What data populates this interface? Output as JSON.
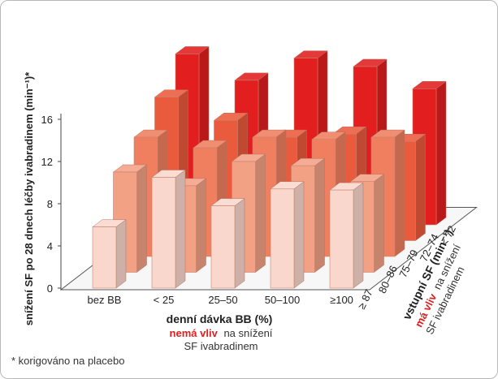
{
  "chart_data": {
    "type": "bar",
    "ylabel": "snížení SF po 28 dnech léčby ivabradinem (min⁻¹)*",
    "y_ticks": [
      "0",
      "4",
      "8",
      "12",
      "16"
    ],
    "ylim": [
      0,
      16
    ],
    "xlabel": "denní dávka BB (%)",
    "xlabel_note_red": "nemá vliv",
    "xlabel_note_rest1": "na snížení",
    "xlabel_note_rest2": "SF ivabradinem",
    "categories": [
      "bez BB",
      "< 25",
      "25–50",
      "50–100",
      "≥100"
    ],
    "zlabel": "vstupní SF (min⁻¹)",
    "zlabel_note_red": "má vliv",
    "zlabel_note_rest1": "na snížení",
    "zlabel_note_rest2": "SF ivabradinem",
    "series": [
      {
        "name": "≥ 87",
        "color": "#fad7cc",
        "values": [
          5.8,
          10.5,
          7.8,
          9.4,
          9.3
        ]
      },
      {
        "name": "80–86",
        "color": "#f2a185",
        "values": [
          9.5,
          8.2,
          10.5,
          10.1,
          8.6
        ]
      },
      {
        "name": "75–79",
        "color": "#ef7f5f",
        "values": [
          11.3,
          10.3,
          11.3,
          11.1,
          11.3
        ]
      },
      {
        "name": "72–74",
        "color": "#ea5a3c",
        "values": [
          13.6,
          11.4,
          9.8,
          10.1,
          9.4
        ]
      },
      {
        "name": "< 72",
        "color": "#e21e1e",
        "values": [
          16.2,
          13.7,
          15.8,
          15.0,
          12.9
        ]
      }
    ],
    "footnote": "* korigováno na placebo"
  }
}
